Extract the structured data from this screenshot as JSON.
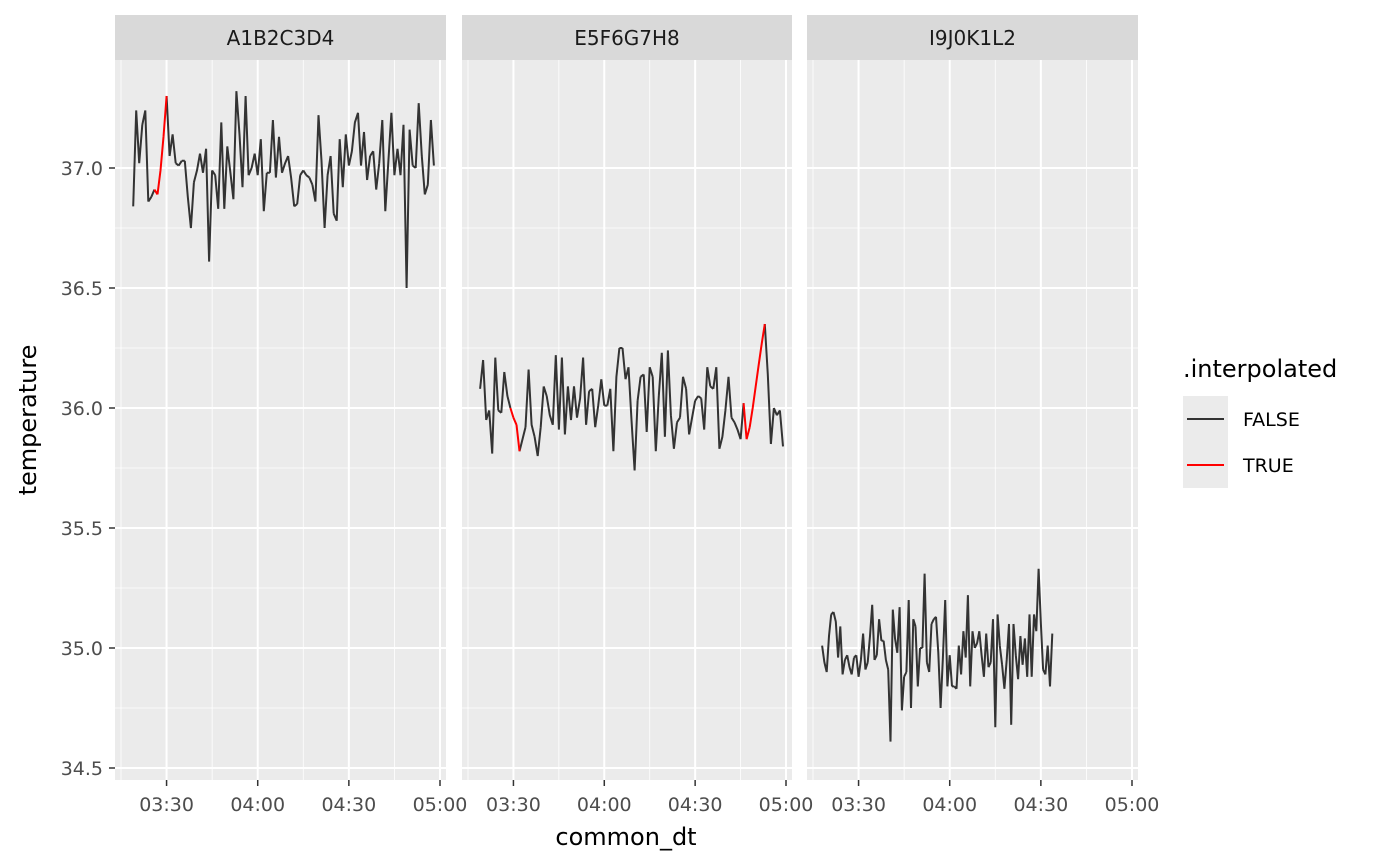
{
  "chart_data": {
    "type": "line",
    "xlabel": "common_dt",
    "ylabel": "temperature",
    "ylim": [
      34.45,
      37.45
    ],
    "xlim": [
      "03:15",
      "05:00"
    ],
    "x_tick_labels": [
      "03:30",
      "04:00",
      "04:30",
      "05:00"
    ],
    "y_tick_labels": [
      "34.5",
      "35.0",
      "35.5",
      "36.0",
      "36.5",
      "37.0"
    ],
    "y_ticks": [
      34.5,
      35.0,
      35.5,
      36.0,
      36.5,
      37.0
    ],
    "grid": true,
    "legend": {
      "title": ".interpolated",
      "position": "right",
      "entries": [
        {
          "label": "FALSE",
          "color": "#333333"
        },
        {
          "label": "TRUE",
          "color": "#ff0000"
        }
      ]
    },
    "panels": [
      {
        "name": "A1B2C3D4",
        "start": "03:19",
        "step_min": 1,
        "values": [
          36.84,
          37.24,
          37.02,
          37.18,
          37.24,
          36.86,
          36.88,
          36.91,
          36.89,
          36.99,
          37.13,
          37.3,
          37.05,
          37.14,
          37.02,
          37.01,
          37.03,
          37.03,
          36.88,
          36.75,
          36.94,
          36.99,
          37.06,
          36.98,
          37.08,
          36.61,
          36.99,
          36.97,
          36.83,
          37.19,
          36.83,
          37.09,
          36.98,
          36.87,
          37.32,
          37.14,
          36.92,
          37.3,
          36.97,
          37.0,
          37.06,
          36.97,
          37.12,
          36.82,
          36.98,
          36.98,
          37.2,
          36.96,
          37.13,
          36.98,
          37.02,
          37.05,
          36.96,
          36.84,
          36.85,
          36.97,
          36.99,
          36.97,
          36.96,
          36.93,
          36.86,
          37.22,
          37.03,
          36.75,
          36.97,
          37.05,
          36.81,
          36.78,
          37.12,
          36.92,
          37.14,
          37.01,
          37.07,
          37.19,
          37.23,
          37.01,
          37.15,
          36.95,
          37.05,
          37.07,
          36.91,
          37.02,
          37.2,
          36.82,
          37.03,
          37.23,
          36.97,
          37.08,
          36.97,
          37.18,
          36.5,
          37.16,
          37.01,
          37.0,
          37.27,
          37.05,
          36.89,
          36.93,
          37.2,
          37.01
        ],
        "interpolated": [
          [
            7,
            11
          ]
        ]
      },
      {
        "name": "E5F6G7H8",
        "start": "03:19",
        "step_min": 1,
        "values": [
          36.08,
          36.2,
          35.95,
          35.99,
          35.81,
          36.21,
          35.99,
          35.98,
          36.15,
          36.05,
          36.0,
          35.96,
          35.93,
          35.82,
          35.87,
          35.92,
          36.16,
          35.93,
          35.88,
          35.8,
          35.92,
          36.09,
          36.05,
          35.97,
          35.93,
          36.22,
          35.91,
          36.21,
          35.89,
          36.09,
          35.95,
          36.09,
          35.96,
          36.04,
          36.21,
          35.93,
          36.07,
          36.08,
          35.92,
          36.01,
          36.12,
          36.01,
          36.01,
          36.08,
          35.82,
          36.13,
          36.25,
          36.25,
          36.12,
          36.17,
          35.95,
          35.74,
          36.03,
          36.13,
          36.14,
          35.9,
          36.17,
          36.13,
          35.82,
          36.05,
          36.23,
          35.88,
          36.24,
          35.97,
          35.83,
          35.94,
          35.96,
          36.13,
          36.08,
          35.89,
          35.96,
          36.03,
          36.05,
          36.04,
          35.91,
          36.17,
          36.09,
          36.08,
          36.17,
          35.83,
          35.88,
          35.99,
          36.13,
          35.96,
          35.94,
          35.91,
          35.87,
          36.02,
          35.87,
          35.92,
          36.0,
          36.09,
          36.18,
          36.27,
          36.35,
          36.14,
          35.85,
          36.0,
          35.97,
          35.99,
          35.84
        ],
        "interpolated": [
          [
            10,
            13
          ],
          [
            87,
            94
          ]
        ]
      },
      {
        "name": "I9J0K1L2",
        "start": "03:18",
        "step_min": 0.75,
        "values": [
          35.01,
          34.94,
          34.9,
          35.05,
          35.14,
          35.15,
          35.11,
          34.96,
          35.09,
          34.89,
          34.95,
          34.97,
          34.92,
          34.89,
          34.96,
          34.97,
          34.88,
          34.95,
          35.06,
          34.91,
          34.94,
          35.05,
          35.18,
          34.95,
          34.97,
          35.12,
          35.03,
          35.03,
          34.95,
          34.91,
          34.61,
          35.16,
          35.04,
          34.98,
          35.17,
          34.74,
          34.88,
          34.9,
          35.2,
          34.75,
          35.12,
          35.09,
          34.84,
          35.0,
          35.0,
          35.31,
          34.94,
          34.9,
          35.1,
          35.12,
          35.13,
          34.98,
          34.75,
          34.96,
          35.2,
          34.84,
          34.97,
          34.84,
          34.84,
          34.83,
          35.01,
          34.89,
          35.07,
          34.96,
          35.22,
          34.84,
          35.07,
          35.0,
          35.02,
          35.07,
          34.97,
          34.88,
          35.06,
          34.92,
          34.94,
          35.12,
          34.67,
          35.14,
          35.01,
          34.93,
          34.83,
          34.95,
          35.1,
          34.68,
          35.1,
          34.97,
          34.87,
          35.05,
          34.93,
          35.04,
          34.88,
          35.14,
          34.88,
          35.14,
          35.07,
          35.33,
          35.1,
          34.91,
          34.89,
          35.01,
          34.84,
          35.06
        ],
        "interpolated": []
      }
    ]
  }
}
